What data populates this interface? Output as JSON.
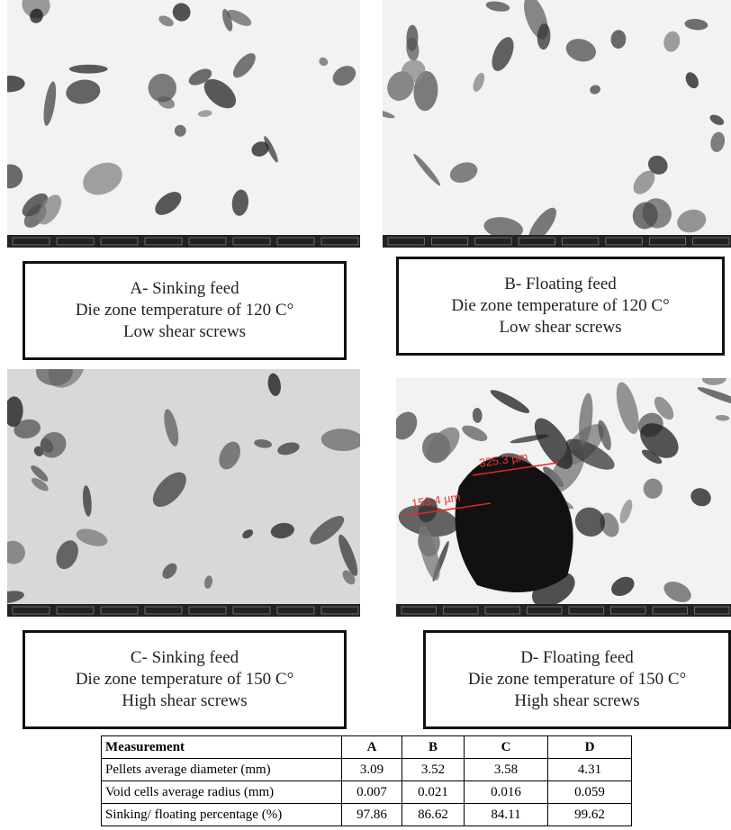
{
  "panels": [
    {
      "caption": [
        "A- Sinking feed",
        "Die zone temperature of 120 C°",
        "Low shear screws"
      ]
    },
    {
      "caption": [
        "B- Floating feed",
        "Die zone temperature of 120 C°",
        "Low shear screws"
      ]
    },
    {
      "caption": [
        "C- Sinking feed",
        "Die zone temperature of 150 C°",
        "High shear screws"
      ]
    },
    {
      "caption": [
        "D- Floating feed",
        "Die zone temperature of 150 C°",
        "High shear screws"
      ],
      "annotations": [
        "325.3 µm",
        "153.4 µm"
      ]
    }
  ],
  "table": {
    "header": [
      "Measurement",
      "A",
      "B",
      "C",
      "D"
    ],
    "rows": [
      [
        "Pellets average diameter (mm)",
        3.09,
        3.52,
        3.58,
        4.31
      ],
      [
        "Void cells average radius (mm)",
        0.007,
        0.021,
        0.016,
        0.059
      ],
      [
        "Sinking/ floating percentage (%)",
        97.86,
        86.62,
        84.11,
        99.62
      ]
    ]
  }
}
